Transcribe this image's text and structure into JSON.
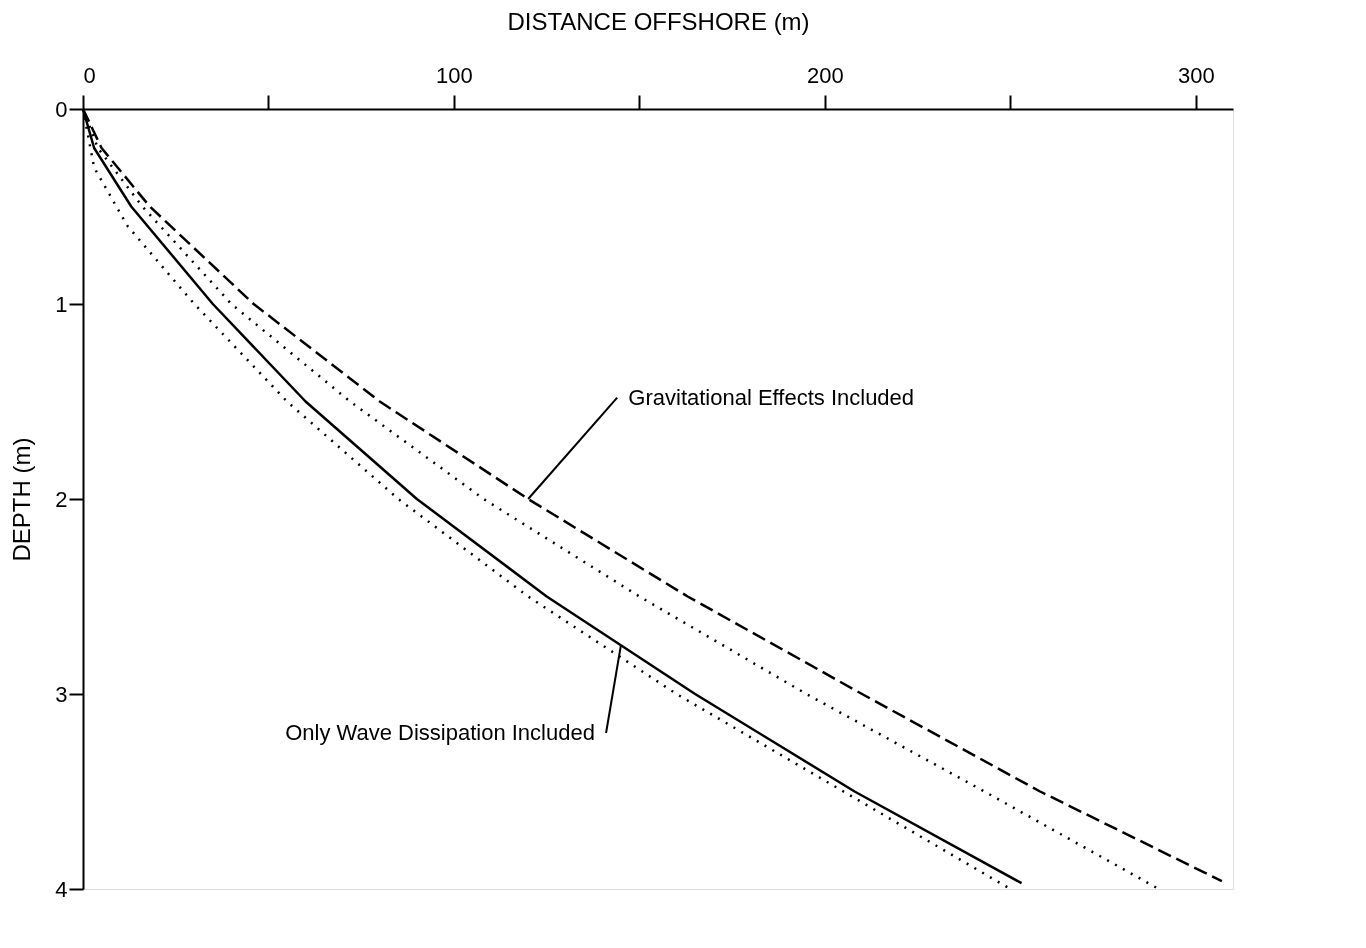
{
  "chart_data": {
    "type": "line",
    "xlabel": "DISTANCE OFFSHORE (m)",
    "ylabel": "DEPTH (m)",
    "xlim": [
      0,
      310
    ],
    "ylim": [
      4,
      0
    ],
    "xticks": [
      0,
      {
        "value": 50,
        "label": null
      },
      100,
      {
        "value": 150,
        "label": null
      },
      200,
      {
        "value": 250,
        "label": null
      },
      300
    ],
    "yticks": [
      0,
      1,
      2,
      3,
      4
    ],
    "grid": false,
    "series": [
      {
        "color": "#000000",
        "line_style": "solid",
        "x": [
          0,
          3,
          13,
          35,
          60,
          90,
          125,
          165,
          208,
          253
        ],
        "values": [
          0,
          0.2,
          0.5,
          1,
          1.5,
          2,
          2.5,
          3,
          3.5,
          3.97
        ]
      },
      {
        "color": "#000000",
        "line_style": "dashed",
        "x": [
          0,
          5,
          18,
          46,
          80,
          120,
          163,
          210,
          258,
          307
        ],
        "values": [
          0,
          0.2,
          0.5,
          1,
          1.5,
          2,
          2.5,
          3,
          3.5,
          3.96
        ]
      },
      {
        "color": "#000000",
        "line_style": "dotted",
        "x": [
          0,
          3,
          12,
          30,
          55,
          85,
          120,
          160,
          205,
          250
        ],
        "values": [
          0,
          0.3,
          0.6,
          1,
          1.5,
          2,
          2.5,
          3,
          3.5,
          4
        ]
      },
      {
        "color": "#000000",
        "line_style": "dotted",
        "x": [
          0,
          4,
          16,
          40,
          72,
          108,
          150,
          195,
          243,
          290
        ],
        "values": [
          0,
          0.2,
          0.5,
          1,
          1.5,
          2,
          2.5,
          3,
          3.5,
          4
        ]
      }
    ],
    "annotations": [
      {
        "text": "Gravitational Effects Included",
        "x": 120,
        "y": 2
      },
      {
        "text": "Only Wave Dissipation Included",
        "x": 145,
        "y": 2.75
      }
    ]
  }
}
